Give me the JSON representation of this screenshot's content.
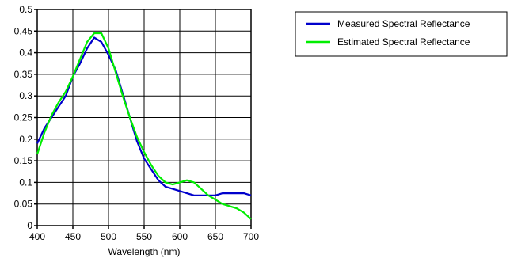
{
  "chart_data": {
    "type": "line",
    "title": "",
    "xlabel": "Wavelength (nm)",
    "ylabel": "",
    "xlim": [
      400,
      700
    ],
    "ylim": [
      0,
      0.5
    ],
    "x_ticks": [
      400,
      450,
      500,
      550,
      600,
      650,
      700
    ],
    "y_ticks": [
      0,
      0.05,
      0.1,
      0.15,
      0.2,
      0.25,
      0.3,
      0.35,
      0.4,
      0.45,
      0.5
    ],
    "x_tick_labels": [
      "400",
      "450",
      "500",
      "550",
      "600",
      "650",
      "700"
    ],
    "y_tick_labels": [
      "0",
      "0.05",
      "0.1",
      "0.15",
      "0.2",
      "0.25",
      "0.3",
      "0.35",
      "0.4",
      "0.45",
      "0.5"
    ],
    "grid": true,
    "legend_position": "top-right-outside",
    "series": [
      {
        "name": "Measured Spectral Reflectance",
        "color": "#0000cc",
        "x": [
          400,
          410,
          420,
          430,
          440,
          450,
          460,
          470,
          480,
          490,
          500,
          510,
          520,
          530,
          540,
          550,
          560,
          570,
          580,
          590,
          600,
          610,
          620,
          630,
          640,
          650,
          660,
          670,
          680,
          690,
          700
        ],
        "y": [
          0.19,
          0.225,
          0.25,
          0.275,
          0.3,
          0.345,
          0.375,
          0.41,
          0.435,
          0.425,
          0.395,
          0.36,
          0.305,
          0.25,
          0.195,
          0.155,
          0.13,
          0.105,
          0.09,
          0.085,
          0.08,
          0.075,
          0.07,
          0.07,
          0.07,
          0.07,
          0.075,
          0.075,
          0.075,
          0.075,
          0.07
        ]
      },
      {
        "name": "Estimated Spectral Reflectance",
        "color": "#00ee00",
        "x": [
          400,
          410,
          420,
          430,
          440,
          450,
          460,
          470,
          480,
          490,
          500,
          510,
          520,
          530,
          540,
          550,
          560,
          570,
          580,
          590,
          600,
          610,
          620,
          630,
          640,
          650,
          660,
          670,
          680,
          690,
          700
        ],
        "y": [
          0.165,
          0.215,
          0.255,
          0.285,
          0.31,
          0.345,
          0.385,
          0.425,
          0.445,
          0.445,
          0.41,
          0.355,
          0.3,
          0.25,
          0.205,
          0.17,
          0.14,
          0.115,
          0.1,
          0.095,
          0.1,
          0.105,
          0.1,
          0.085,
          0.07,
          0.06,
          0.05,
          0.045,
          0.04,
          0.03,
          0.015
        ]
      }
    ]
  }
}
